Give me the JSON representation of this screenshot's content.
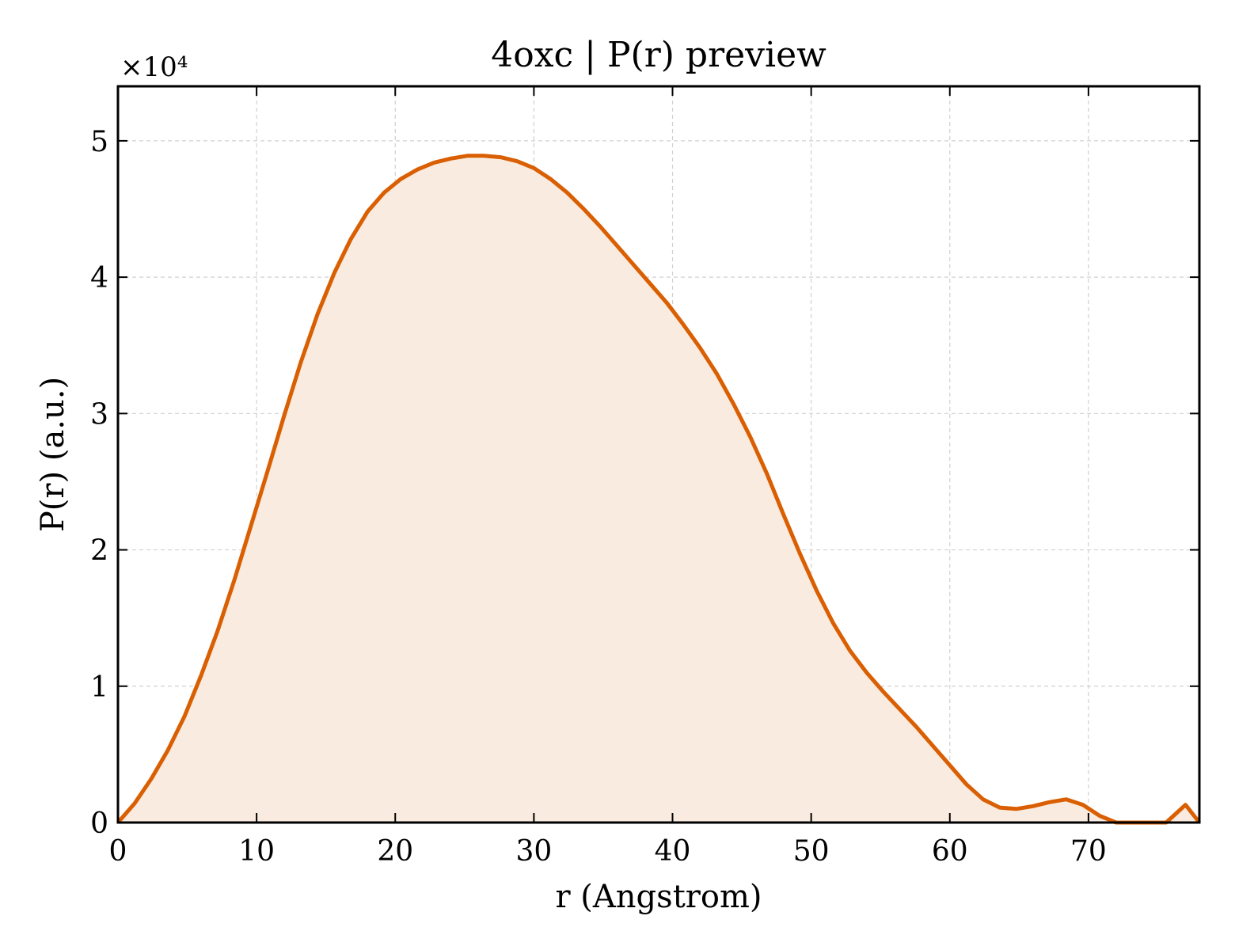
{
  "chart_data": {
    "type": "area",
    "title": "4oxc | P(r) preview",
    "xlabel": "r (Angstrom)",
    "ylabel": "P(r) (a.u.)",
    "y_offset_label": "×10⁴",
    "y_scale": 10000,
    "xlim": [
      0,
      78
    ],
    "ylim": [
      0,
      5.4
    ],
    "x_ticks": [
      0,
      10,
      20,
      30,
      40,
      50,
      60,
      70
    ],
    "y_ticks": [
      0,
      1,
      2,
      3,
      4,
      5
    ],
    "grid": true,
    "series": [
      {
        "color": "#d95f02",
        "fill_color": "#f9ebe0",
        "x": [
          0,
          1.2,
          2.4,
          3.6,
          4.8,
          6.0,
          7.2,
          8.4,
          9.6,
          10.8,
          12.0,
          13.2,
          14.4,
          15.6,
          16.8,
          18.0,
          19.2,
          20.4,
          21.6,
          22.8,
          24.0,
          25.2,
          26.4,
          27.6,
          28.8,
          30.0,
          31.2,
          32.4,
          33.6,
          34.8,
          36.0,
          37.2,
          38.4,
          39.6,
          40.8,
          42.0,
          43.2,
          44.4,
          45.6,
          46.8,
          48.0,
          49.2,
          50.4,
          51.6,
          52.8,
          54.0,
          55.2,
          56.4,
          57.6,
          58.8,
          60.0,
          61.2,
          62.4,
          63.6,
          64.8,
          66.0,
          67.2,
          68.4,
          69.6,
          70.8,
          72.0,
          72.8,
          74.0,
          75.6,
          77.0,
          78.0
        ],
        "y": [
          0,
          0.14,
          0.32,
          0.53,
          0.78,
          1.08,
          1.41,
          1.78,
          2.18,
          2.58,
          2.99,
          3.38,
          3.73,
          4.03,
          4.28,
          4.48,
          4.62,
          4.72,
          4.79,
          4.84,
          4.87,
          4.89,
          4.89,
          4.88,
          4.85,
          4.8,
          4.72,
          4.62,
          4.5,
          4.37,
          4.23,
          4.09,
          3.95,
          3.81,
          3.65,
          3.48,
          3.29,
          3.07,
          2.83,
          2.56,
          2.26,
          1.97,
          1.7,
          1.46,
          1.26,
          1.1,
          0.96,
          0.83,
          0.7,
          0.56,
          0.42,
          0.28,
          0.17,
          0.11,
          0.1,
          0.12,
          0.15,
          0.17,
          0.13,
          0.05,
          0.0,
          0.0,
          0.0,
          0.0,
          0.13,
          0.0
        ]
      }
    ]
  }
}
